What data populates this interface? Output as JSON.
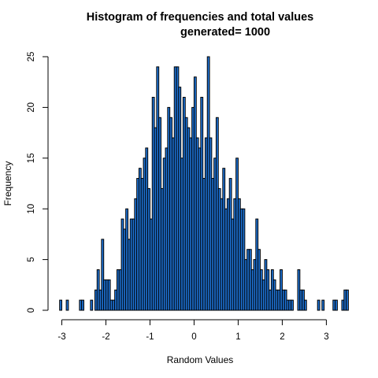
{
  "chart_data": {
    "type": "bar",
    "title_line1": "Histogram of frequencies and total values",
    "title_line2": "generated= 1000",
    "xlabel": "Random Values",
    "ylabel": "Frequency",
    "xlim": [
      -3.0,
      3.35
    ],
    "ylim": [
      0,
      25
    ],
    "x_ticks": [
      -3,
      -2,
      -1,
      0,
      1,
      2,
      3
    ],
    "y_ticks": [
      0,
      5,
      10,
      15,
      20,
      25
    ],
    "bin_start": -3.05,
    "bin_width": 0.05,
    "values": [
      1,
      0,
      0,
      1,
      0,
      0,
      0,
      0,
      0,
      1,
      1,
      0,
      0,
      0,
      1,
      0,
      2,
      4,
      2,
      7,
      3,
      3,
      3,
      1,
      1,
      2,
      4,
      4,
      9,
      8,
      10,
      7,
      9,
      9,
      11,
      13,
      14,
      13,
      15,
      16,
      12,
      9,
      21,
      18,
      24,
      19,
      12,
      15,
      16,
      20,
      19,
      17,
      24,
      24,
      22,
      15,
      21,
      19,
      18,
      17,
      20,
      23,
      17,
      16,
      21,
      13,
      17,
      25,
      17,
      13,
      15,
      19,
      12,
      11,
      14,
      10,
      11,
      13,
      9,
      11,
      15,
      11,
      10,
      10,
      5,
      6,
      6,
      4,
      5,
      9,
      6,
      4,
      3,
      5,
      4,
      2,
      4,
      3,
      2,
      2,
      4,
      2,
      2,
      1,
      1,
      1,
      0,
      0,
      4,
      2,
      2,
      1,
      0,
      0,
      0,
      0,
      0,
      1,
      0,
      1,
      0,
      0,
      0,
      0,
      1,
      1,
      0,
      0,
      1,
      2,
      2
    ],
    "bar_fill": "#1e73d6",
    "bar_stroke": "#000000",
    "grid": false,
    "legend": "none"
  }
}
